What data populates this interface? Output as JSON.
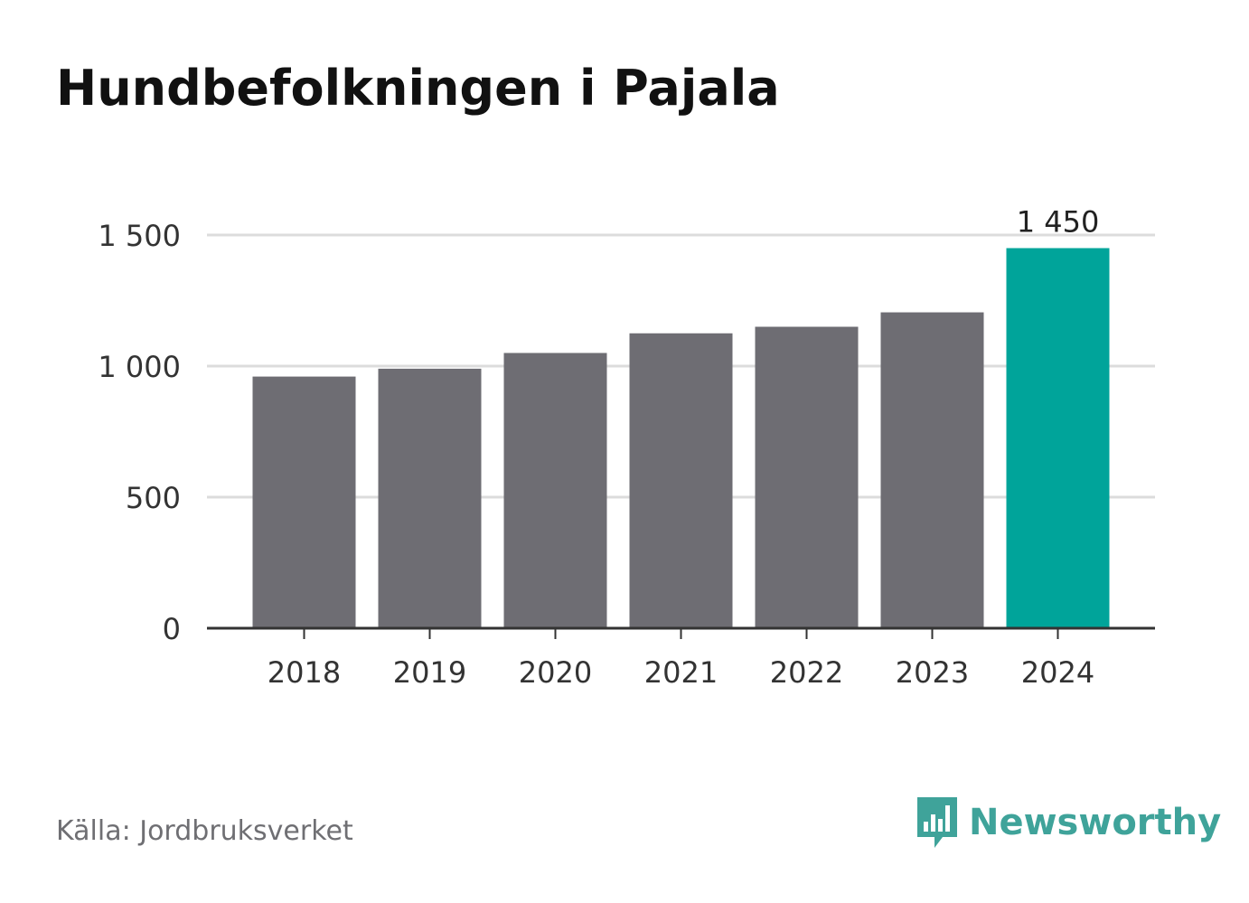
{
  "title": "Hundbefolkningen i Pajala",
  "source": "Källa: Jordbruksverket",
  "brand": "Newsworthy",
  "colors": {
    "bar": "#6e6d73",
    "highlight": "#00a49a",
    "grid": "#dcdcdc",
    "axis": "#333333",
    "brand": "#3fa39a"
  },
  "chart_data": {
    "type": "bar",
    "categories": [
      "2018",
      "2019",
      "2020",
      "2021",
      "2022",
      "2023",
      "2024"
    ],
    "values": [
      960,
      990,
      1050,
      1125,
      1150,
      1205,
      1450
    ],
    "highlight_index": 6,
    "data_labels": [
      {
        "index": 6,
        "text": "1 450"
      }
    ],
    "yticks": [
      0,
      500,
      1000,
      1500
    ],
    "ytick_labels": [
      "0",
      "500",
      "1 000",
      "1 500"
    ],
    "ylim": [
      0,
      1500
    ],
    "grid": true,
    "legend": false
  }
}
